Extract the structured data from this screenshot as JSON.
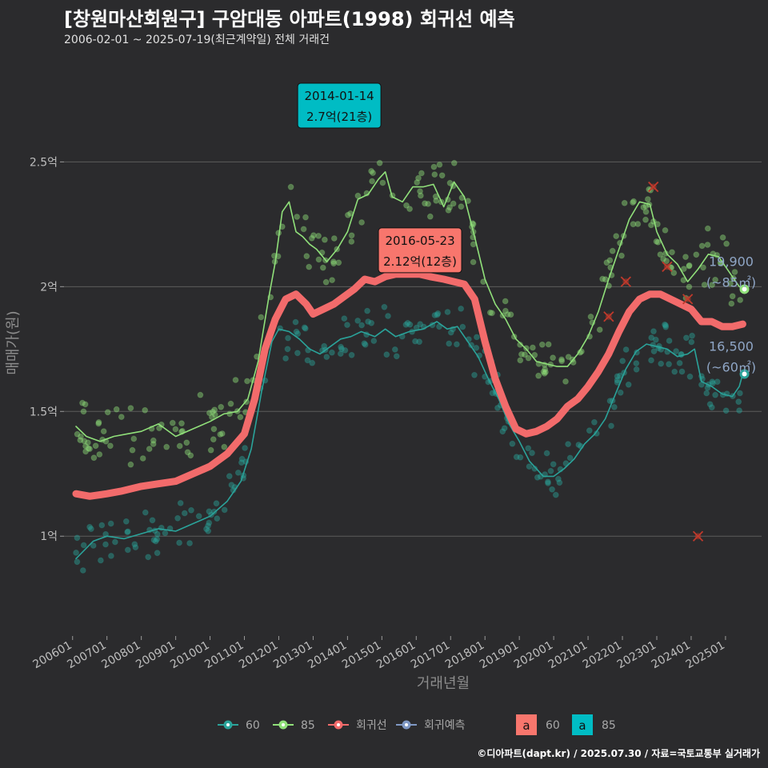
{
  "header": {
    "title": "[창원마산회원구] 구암대동 아파트(1998) 회귀선 예측",
    "subtitle": "2006-02-01 ~ 2025-07-19(최근계약일) 전체 거래건"
  },
  "caption": "©디아파트(dapt.kr) / 2025.07.30 / 자료=국토교통부 실거래가",
  "colors": {
    "background": "#2b2b2d",
    "grid": "#5c5c5c",
    "s60": "#2aa39a",
    "s85": "#90e07a",
    "regression": "#f26b6b",
    "forecast": "#7f98c4",
    "box60": "#f8766d",
    "box85": "#00bcc4",
    "outlier": "#c0392b"
  },
  "chart_data": {
    "type": "scatter",
    "title": "[창원마산회원구] 구암대동 아파트(1998) 회귀선 예측",
    "subtitle": "2006-02-01 ~ 2025-07-19(최근계약일) 전체 거래건",
    "xlabel": "거래년월",
    "ylabel": "매매가(원)",
    "xlim": [
      2005.75,
      2026.05
    ],
    "ylim": [
      0.6,
      2.95
    ],
    "y_unit": "억",
    "grid": true,
    "x_ticks": [
      {
        "value": 2006.0,
        "label": "200601"
      },
      {
        "value": 2007.0,
        "label": "200701"
      },
      {
        "value": 2008.0,
        "label": "200801"
      },
      {
        "value": 2009.0,
        "label": "200901"
      },
      {
        "value": 2010.0,
        "label": "201001"
      },
      {
        "value": 2011.0,
        "label": "201101"
      },
      {
        "value": 2012.0,
        "label": "201201"
      },
      {
        "value": 2013.0,
        "label": "201301"
      },
      {
        "value": 2014.0,
        "label": "201401"
      },
      {
        "value": 2015.0,
        "label": "201501"
      },
      {
        "value": 2016.0,
        "label": "201601"
      },
      {
        "value": 2017.0,
        "label": "201701"
      },
      {
        "value": 2018.0,
        "label": "201801"
      },
      {
        "value": 2019.0,
        "label": "201901"
      },
      {
        "value": 2020.0,
        "label": "202001"
      },
      {
        "value": 2021.0,
        "label": "202101"
      },
      {
        "value": 2022.0,
        "label": "202201"
      },
      {
        "value": 2023.0,
        "label": "202301"
      },
      {
        "value": 2024.0,
        "label": "202401"
      },
      {
        "value": 2025.0,
        "label": "202501"
      }
    ],
    "y_ticks": [
      {
        "value": 1.0,
        "label": "1억"
      },
      {
        "value": 1.5,
        "label": "1.5억"
      },
      {
        "value": 2.0,
        "label": "2억"
      },
      {
        "value": 2.5,
        "label": "2.5억"
      }
    ],
    "series": [
      {
        "name": "60",
        "kind": "moving-average",
        "color": "#2aa39a",
        "points": [
          [
            2006.1,
            0.91
          ],
          [
            2006.6,
            0.98
          ],
          [
            2007.0,
            1.0
          ],
          [
            2007.5,
            0.99
          ],
          [
            2008.0,
            1.01
          ],
          [
            2008.5,
            1.03
          ],
          [
            2009.0,
            1.02
          ],
          [
            2009.5,
            1.05
          ],
          [
            2010.0,
            1.08
          ],
          [
            2010.5,
            1.14
          ],
          [
            2010.9,
            1.22
          ],
          [
            2011.2,
            1.35
          ],
          [
            2011.5,
            1.58
          ],
          [
            2011.8,
            1.78
          ],
          [
            2012.0,
            1.83
          ],
          [
            2012.3,
            1.82
          ],
          [
            2012.6,
            1.79
          ],
          [
            2012.9,
            1.75
          ],
          [
            2013.2,
            1.73
          ],
          [
            2013.5,
            1.76
          ],
          [
            2013.8,
            1.79
          ],
          [
            2014.1,
            1.8
          ],
          [
            2014.4,
            1.82
          ],
          [
            2014.8,
            1.8
          ],
          [
            2015.1,
            1.83
          ],
          [
            2015.4,
            1.8
          ],
          [
            2015.8,
            1.82
          ],
          [
            2016.2,
            1.83
          ],
          [
            2016.6,
            1.86
          ],
          [
            2016.9,
            1.83
          ],
          [
            2017.2,
            1.84
          ],
          [
            2017.5,
            1.78
          ],
          [
            2017.8,
            1.72
          ],
          [
            2018.1,
            1.63
          ],
          [
            2018.4,
            1.55
          ],
          [
            2018.7,
            1.45
          ],
          [
            2019.0,
            1.38
          ],
          [
            2019.3,
            1.3
          ],
          [
            2019.7,
            1.24
          ],
          [
            2020.0,
            1.24
          ],
          [
            2020.3,
            1.27
          ],
          [
            2020.6,
            1.31
          ],
          [
            2020.9,
            1.37
          ],
          [
            2021.2,
            1.41
          ],
          [
            2021.5,
            1.47
          ],
          [
            2021.8,
            1.57
          ],
          [
            2022.1,
            1.67
          ],
          [
            2022.4,
            1.74
          ],
          [
            2022.7,
            1.77
          ],
          [
            2023.0,
            1.76
          ],
          [
            2023.3,
            1.75
          ],
          [
            2023.6,
            1.72
          ],
          [
            2023.9,
            1.73
          ],
          [
            2024.1,
            1.75
          ],
          [
            2024.3,
            1.62
          ],
          [
            2024.6,
            1.6
          ],
          [
            2024.9,
            1.57
          ],
          [
            2025.2,
            1.56
          ],
          [
            2025.4,
            1.6
          ],
          [
            2025.5,
            1.65
          ]
        ]
      },
      {
        "name": "85",
        "kind": "moving-average",
        "color": "#90e07a",
        "points": [
          [
            2006.1,
            1.44
          ],
          [
            2006.4,
            1.4
          ],
          [
            2006.8,
            1.38
          ],
          [
            2007.2,
            1.4
          ],
          [
            2007.6,
            1.41
          ],
          [
            2008.0,
            1.42
          ],
          [
            2008.5,
            1.45
          ],
          [
            2009.0,
            1.4
          ],
          [
            2009.5,
            1.43
          ],
          [
            2010.0,
            1.46
          ],
          [
            2010.4,
            1.49
          ],
          [
            2010.8,
            1.5
          ],
          [
            2011.1,
            1.55
          ],
          [
            2011.4,
            1.7
          ],
          [
            2011.7,
            1.95
          ],
          [
            2011.9,
            2.1
          ],
          [
            2012.1,
            2.3
          ],
          [
            2012.3,
            2.34
          ],
          [
            2012.5,
            2.22
          ],
          [
            2012.7,
            2.2
          ],
          [
            2012.9,
            2.17
          ],
          [
            2013.1,
            2.15
          ],
          [
            2013.4,
            2.1
          ],
          [
            2013.7,
            2.15
          ],
          [
            2014.0,
            2.22
          ],
          [
            2014.3,
            2.35
          ],
          [
            2014.6,
            2.37
          ],
          [
            2014.9,
            2.43
          ],
          [
            2015.1,
            2.46
          ],
          [
            2015.3,
            2.36
          ],
          [
            2015.6,
            2.34
          ],
          [
            2015.9,
            2.4
          ],
          [
            2016.2,
            2.4
          ],
          [
            2016.5,
            2.41
          ],
          [
            2016.8,
            2.32
          ],
          [
            2017.1,
            2.42
          ],
          [
            2017.4,
            2.36
          ],
          [
            2017.7,
            2.2
          ],
          [
            2018.0,
            2.03
          ],
          [
            2018.3,
            1.93
          ],
          [
            2018.6,
            1.87
          ],
          [
            2018.9,
            1.79
          ],
          [
            2019.2,
            1.75
          ],
          [
            2019.5,
            1.7
          ],
          [
            2019.8,
            1.69
          ],
          [
            2020.1,
            1.68
          ],
          [
            2020.4,
            1.68
          ],
          [
            2020.7,
            1.73
          ],
          [
            2021.0,
            1.8
          ],
          [
            2021.3,
            1.9
          ],
          [
            2021.6,
            2.03
          ],
          [
            2021.9,
            2.15
          ],
          [
            2022.2,
            2.27
          ],
          [
            2022.5,
            2.34
          ],
          [
            2022.8,
            2.33
          ],
          [
            2023.0,
            2.22
          ],
          [
            2023.3,
            2.13
          ],
          [
            2023.6,
            2.09
          ],
          [
            2023.9,
            2.02
          ],
          [
            2024.2,
            2.07
          ],
          [
            2024.5,
            2.13
          ],
          [
            2024.8,
            2.12
          ],
          [
            2025.1,
            2.06
          ],
          [
            2025.4,
            2.0
          ],
          [
            2025.55,
            1.99
          ]
        ]
      },
      {
        "name": "회귀선",
        "kind": "regression",
        "color": "#f26b6b",
        "points": [
          [
            2006.1,
            1.17
          ],
          [
            2006.5,
            1.16
          ],
          [
            2007.0,
            1.17
          ],
          [
            2007.4,
            1.18
          ],
          [
            2008.0,
            1.2
          ],
          [
            2008.5,
            1.21
          ],
          [
            2009.0,
            1.22
          ],
          [
            2009.5,
            1.25
          ],
          [
            2010.0,
            1.28
          ],
          [
            2010.5,
            1.33
          ],
          [
            2011.0,
            1.41
          ],
          [
            2011.3,
            1.55
          ],
          [
            2011.6,
            1.75
          ],
          [
            2011.9,
            1.87
          ],
          [
            2012.2,
            1.95
          ],
          [
            2012.5,
            1.97
          ],
          [
            2012.8,
            1.93
          ],
          [
            2013.0,
            1.89
          ],
          [
            2013.3,
            1.91
          ],
          [
            2013.6,
            1.93
          ],
          [
            2013.9,
            1.96
          ],
          [
            2014.2,
            1.99
          ],
          [
            2014.5,
            2.03
          ],
          [
            2014.8,
            2.02
          ],
          [
            2015.1,
            2.04
          ],
          [
            2015.4,
            2.05
          ],
          [
            2015.8,
            2.05
          ],
          [
            2016.1,
            2.05
          ],
          [
            2016.4,
            2.04
          ],
          [
            2016.8,
            2.03
          ],
          [
            2017.1,
            2.02
          ],
          [
            2017.4,
            2.01
          ],
          [
            2017.7,
            1.95
          ],
          [
            2018.0,
            1.78
          ],
          [
            2018.3,
            1.63
          ],
          [
            2018.6,
            1.52
          ],
          [
            2018.9,
            1.43
          ],
          [
            2019.2,
            1.41
          ],
          [
            2019.5,
            1.42
          ],
          [
            2019.8,
            1.44
          ],
          [
            2020.1,
            1.47
          ],
          [
            2020.4,
            1.52
          ],
          [
            2020.7,
            1.55
          ],
          [
            2021.0,
            1.6
          ],
          [
            2021.3,
            1.66
          ],
          [
            2021.6,
            1.73
          ],
          [
            2021.9,
            1.82
          ],
          [
            2022.2,
            1.9
          ],
          [
            2022.5,
            1.95
          ],
          [
            2022.8,
            1.97
          ],
          [
            2023.1,
            1.97
          ],
          [
            2023.4,
            1.95
          ],
          [
            2023.7,
            1.93
          ],
          [
            2024.0,
            1.91
          ],
          [
            2024.3,
            1.86
          ],
          [
            2024.6,
            1.86
          ],
          [
            2024.9,
            1.84
          ],
          [
            2025.2,
            1.84
          ],
          [
            2025.5,
            1.85
          ]
        ]
      },
      {
        "name": "회귀예측",
        "kind": "forecast",
        "color": "#7f98c4",
        "points": []
      }
    ],
    "callouts": [
      {
        "date": "2014-01-14",
        "price": "2.7억(21층)",
        "x": 2014.04,
        "y": 2.7,
        "series": "85",
        "box_color": "#00bcc4"
      },
      {
        "date": "2016-05-23",
        "price": "2.12억(12층)",
        "x": 2016.39,
        "y": 2.12,
        "series": "60",
        "box_color": "#f8766d"
      }
    ],
    "end_labels": [
      {
        "value": "19,900",
        "area": "(~85㎡)",
        "x": 2025.55,
        "y": 1.99,
        "series": "85"
      },
      {
        "value": "16,500",
        "area": "(~60㎡)",
        "x": 2025.55,
        "y": 1.65,
        "series": "60"
      }
    ],
    "outliers": [
      {
        "x": 2021.6,
        "y": 1.88
      },
      {
        "x": 2022.1,
        "y": 2.02
      },
      {
        "x": 2022.9,
        "y": 2.4
      },
      {
        "x": 2023.3,
        "y": 2.08
      },
      {
        "x": 2023.9,
        "y": 1.95
      },
      {
        "x": 2024.2,
        "y": 1.0
      }
    ],
    "scatter_note": "deal scatter points are generated around the two area moving averages"
  },
  "legend": {
    "items": [
      {
        "label": "60",
        "color": "#2aa39a"
      },
      {
        "label": "85",
        "color": "#90e07a"
      },
      {
        "label": "회귀선",
        "color": "#f26b6b"
      },
      {
        "label": "회귀예측",
        "color": "#7f98c4"
      }
    ],
    "boxes": [
      {
        "glyph": "a",
        "label": "60",
        "color": "#f8766d"
      },
      {
        "glyph": "a",
        "label": "85",
        "color": "#00bcc4"
      }
    ]
  }
}
